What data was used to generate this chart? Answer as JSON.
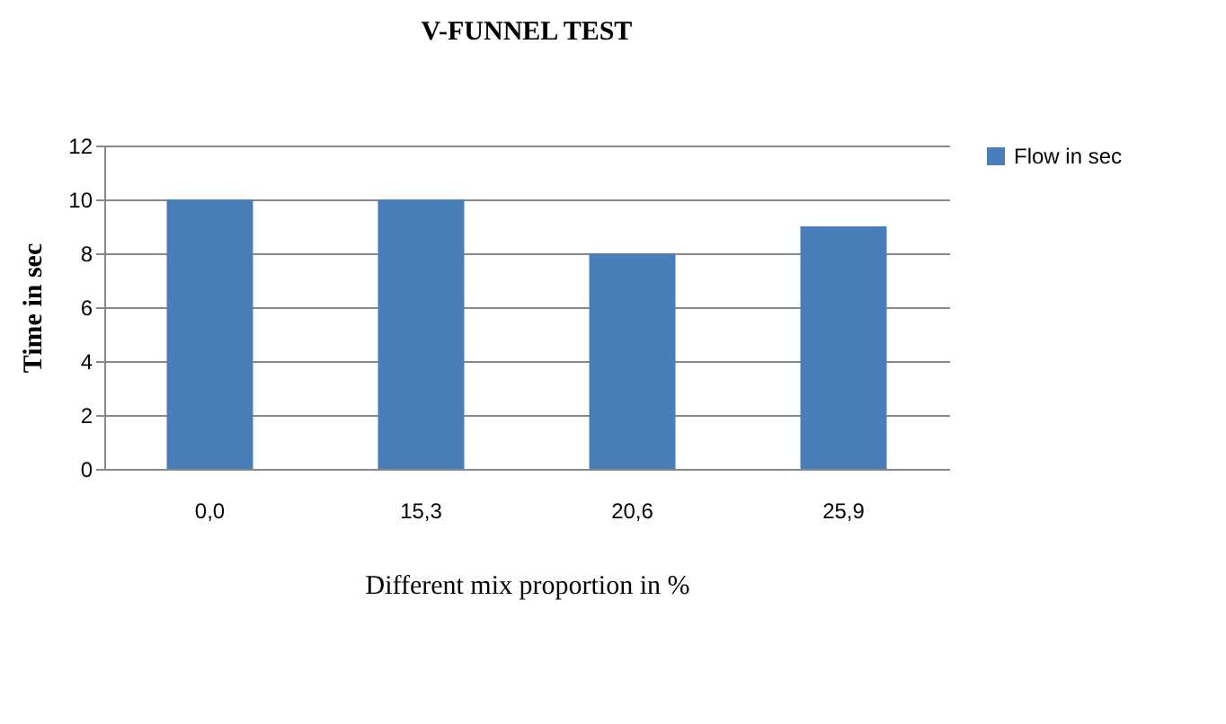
{
  "chart_data": {
    "type": "bar",
    "title": "V-FUNNEL TEST",
    "xlabel": "Different mix proportion in %",
    "ylabel": "Time in sec",
    "categories": [
      "0,0",
      "15,3",
      "20,6",
      "25,9"
    ],
    "series": [
      {
        "name": "Flow in sec",
        "color": "#4a7ebb",
        "values": [
          10,
          10,
          8,
          9
        ]
      }
    ],
    "ylim": [
      0,
      12
    ],
    "yticks": [
      0,
      2,
      4,
      6,
      8,
      10,
      12
    ],
    "grid": "y",
    "legend": "right"
  }
}
